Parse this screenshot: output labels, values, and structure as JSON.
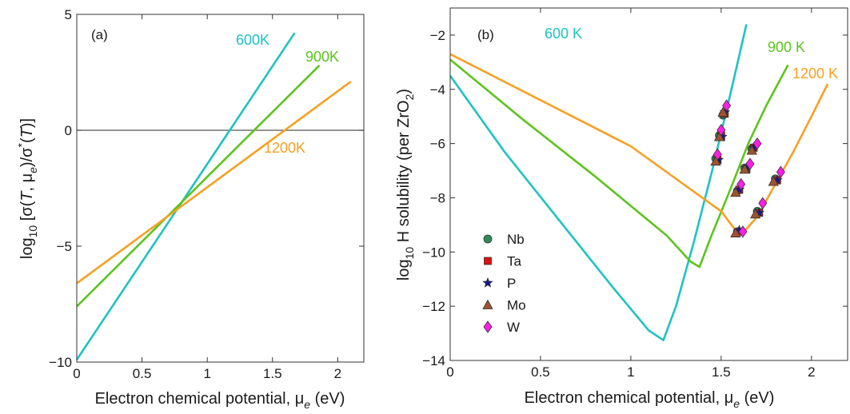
{
  "chart_data": [
    {
      "type": "line",
      "panel_label": "(a)",
      "xlabel": "Electron chemical potential,  μe (eV)",
      "ylabel": "log10 [σ(T, μe)/σ*(T)]",
      "xlim": [
        0,
        2.2
      ],
      "ylim": [
        -10,
        5
      ],
      "xticks": [
        0,
        0.5,
        1,
        1.5,
        2
      ],
      "xtick_labels": [
        "0",
        "0.5",
        "1",
        "1.5",
        "2"
      ],
      "yticks": [
        -10,
        -5,
        0,
        5
      ],
      "ytick_labels": [
        "−10",
        "−5",
        "0",
        "5"
      ],
      "zero_line": true,
      "grid": false,
      "series": [
        {
          "name": "600K",
          "color": "#1fc2c2",
          "x": [
            0,
            1.67
          ],
          "y": [
            -9.9,
            4.2
          ]
        },
        {
          "name": "900K",
          "color": "#5cc41c",
          "x": [
            0,
            1.86
          ],
          "y": [
            -7.6,
            2.8
          ]
        },
        {
          "name": "1200K",
          "color": "#f7a022",
          "x": [
            0,
            2.1
          ],
          "y": [
            -6.6,
            2.1
          ]
        }
      ]
    },
    {
      "type": "line",
      "panel_label": "(b)",
      "xlabel": "Electron chemical potential, μe (eV)",
      "ylabel": "log10 H solubility (per ZrO2)",
      "xlim": [
        0,
        2.2
      ],
      "ylim": [
        -14,
        -1
      ],
      "xticks": [
        0,
        0.5,
        1,
        1.5,
        2
      ],
      "xtick_labels": [
        "0",
        "0.5",
        "1",
        "1.5",
        "2"
      ],
      "yticks": [
        -14,
        -12,
        -10,
        -8,
        -6,
        -4,
        -2
      ],
      "ytick_labels": [
        "−14",
        "−12",
        "−10",
        "−8",
        "−6",
        "−4",
        "−2"
      ],
      "grid": false,
      "legend_position": "bottom-left",
      "series": [
        {
          "name": "600 K",
          "color": "#1fc2c2",
          "x": [
            0,
            0.3,
            0.6,
            0.9,
            1.1,
            1.18,
            1.25,
            1.35,
            1.45,
            1.55,
            1.64
          ],
          "y": [
            -3.5,
            -6.3,
            -8.8,
            -11.3,
            -12.9,
            -13.25,
            -12.0,
            -9.6,
            -7.0,
            -4.2,
            -1.6
          ]
        },
        {
          "name": "900 K",
          "color": "#5cc41c",
          "x": [
            0,
            0.4,
            0.8,
            1.2,
            1.33,
            1.38,
            1.44,
            1.55,
            1.65,
            1.75,
            1.87
          ],
          "y": [
            -2.9,
            -5.1,
            -7.2,
            -9.4,
            -10.35,
            -10.55,
            -9.5,
            -7.7,
            -6.0,
            -4.6,
            -3.1
          ]
        },
        {
          "name": "1200 K",
          "color": "#f7a022",
          "x": [
            0,
            0.5,
            1.0,
            1.5,
            1.58,
            1.62,
            1.7,
            1.8,
            1.9,
            2.0,
            2.09
          ],
          "y": [
            -2.7,
            -4.4,
            -6.1,
            -8.5,
            -9.2,
            -9.3,
            -8.7,
            -7.5,
            -6.3,
            -5.0,
            -3.8
          ]
        }
      ],
      "markers": [
        {
          "name": "Nb",
          "shape": "circle",
          "color": "#2e8b57",
          "points": [
            [
              1.47,
              -6.55
            ],
            [
              1.49,
              -5.7
            ],
            [
              1.51,
              -4.95
            ],
            [
              1.59,
              -7.75
            ],
            [
              1.63,
              -6.9
            ],
            [
              1.67,
              -6.2
            ],
            [
              1.59,
              -9.25
            ],
            [
              1.7,
              -8.5
            ],
            [
              1.8,
              -7.3
            ]
          ]
        },
        {
          "name": "Ta",
          "shape": "square",
          "color": "#e01010",
          "points": [
            [
              1.48,
              -6.6
            ],
            [
              1.5,
              -5.7
            ],
            [
              1.52,
              -4.9
            ],
            [
              1.6,
              -7.7
            ],
            [
              1.64,
              -6.95
            ],
            [
              1.68,
              -6.15
            ],
            [
              1.6,
              -9.25
            ],
            [
              1.71,
              -8.55
            ],
            [
              1.81,
              -7.35
            ]
          ]
        },
        {
          "name": "P",
          "shape": "star",
          "color": "#16169a",
          "points": [
            [
              1.485,
              -6.6
            ],
            [
              1.505,
              -5.75
            ],
            [
              1.52,
              -4.85
            ],
            [
              1.6,
              -7.7
            ],
            [
              1.64,
              -6.9
            ],
            [
              1.68,
              -6.15
            ],
            [
              1.6,
              -9.2
            ],
            [
              1.71,
              -8.55
            ],
            [
              1.81,
              -7.35
            ]
          ]
        },
        {
          "name": "Mo",
          "shape": "triangle",
          "color": "#a0522d",
          "points": [
            [
              1.47,
              -6.65
            ],
            [
              1.49,
              -5.75
            ],
            [
              1.51,
              -4.85
            ],
            [
              1.58,
              -7.8
            ],
            [
              1.63,
              -6.95
            ],
            [
              1.67,
              -6.25
            ],
            [
              1.58,
              -9.3
            ],
            [
              1.69,
              -8.6
            ],
            [
              1.79,
              -7.4
            ]
          ]
        },
        {
          "name": "W",
          "shape": "diamond",
          "color": "#ff1ee6",
          "points": [
            [
              1.48,
              -6.4
            ],
            [
              1.5,
              -5.5
            ],
            [
              1.53,
              -4.6
            ],
            [
              1.61,
              -7.5
            ],
            [
              1.66,
              -6.75
            ],
            [
              1.7,
              -6.0
            ],
            [
              1.62,
              -9.25
            ],
            [
              1.73,
              -8.2
            ],
            [
              1.83,
              -7.05
            ]
          ]
        }
      ]
    }
  ]
}
